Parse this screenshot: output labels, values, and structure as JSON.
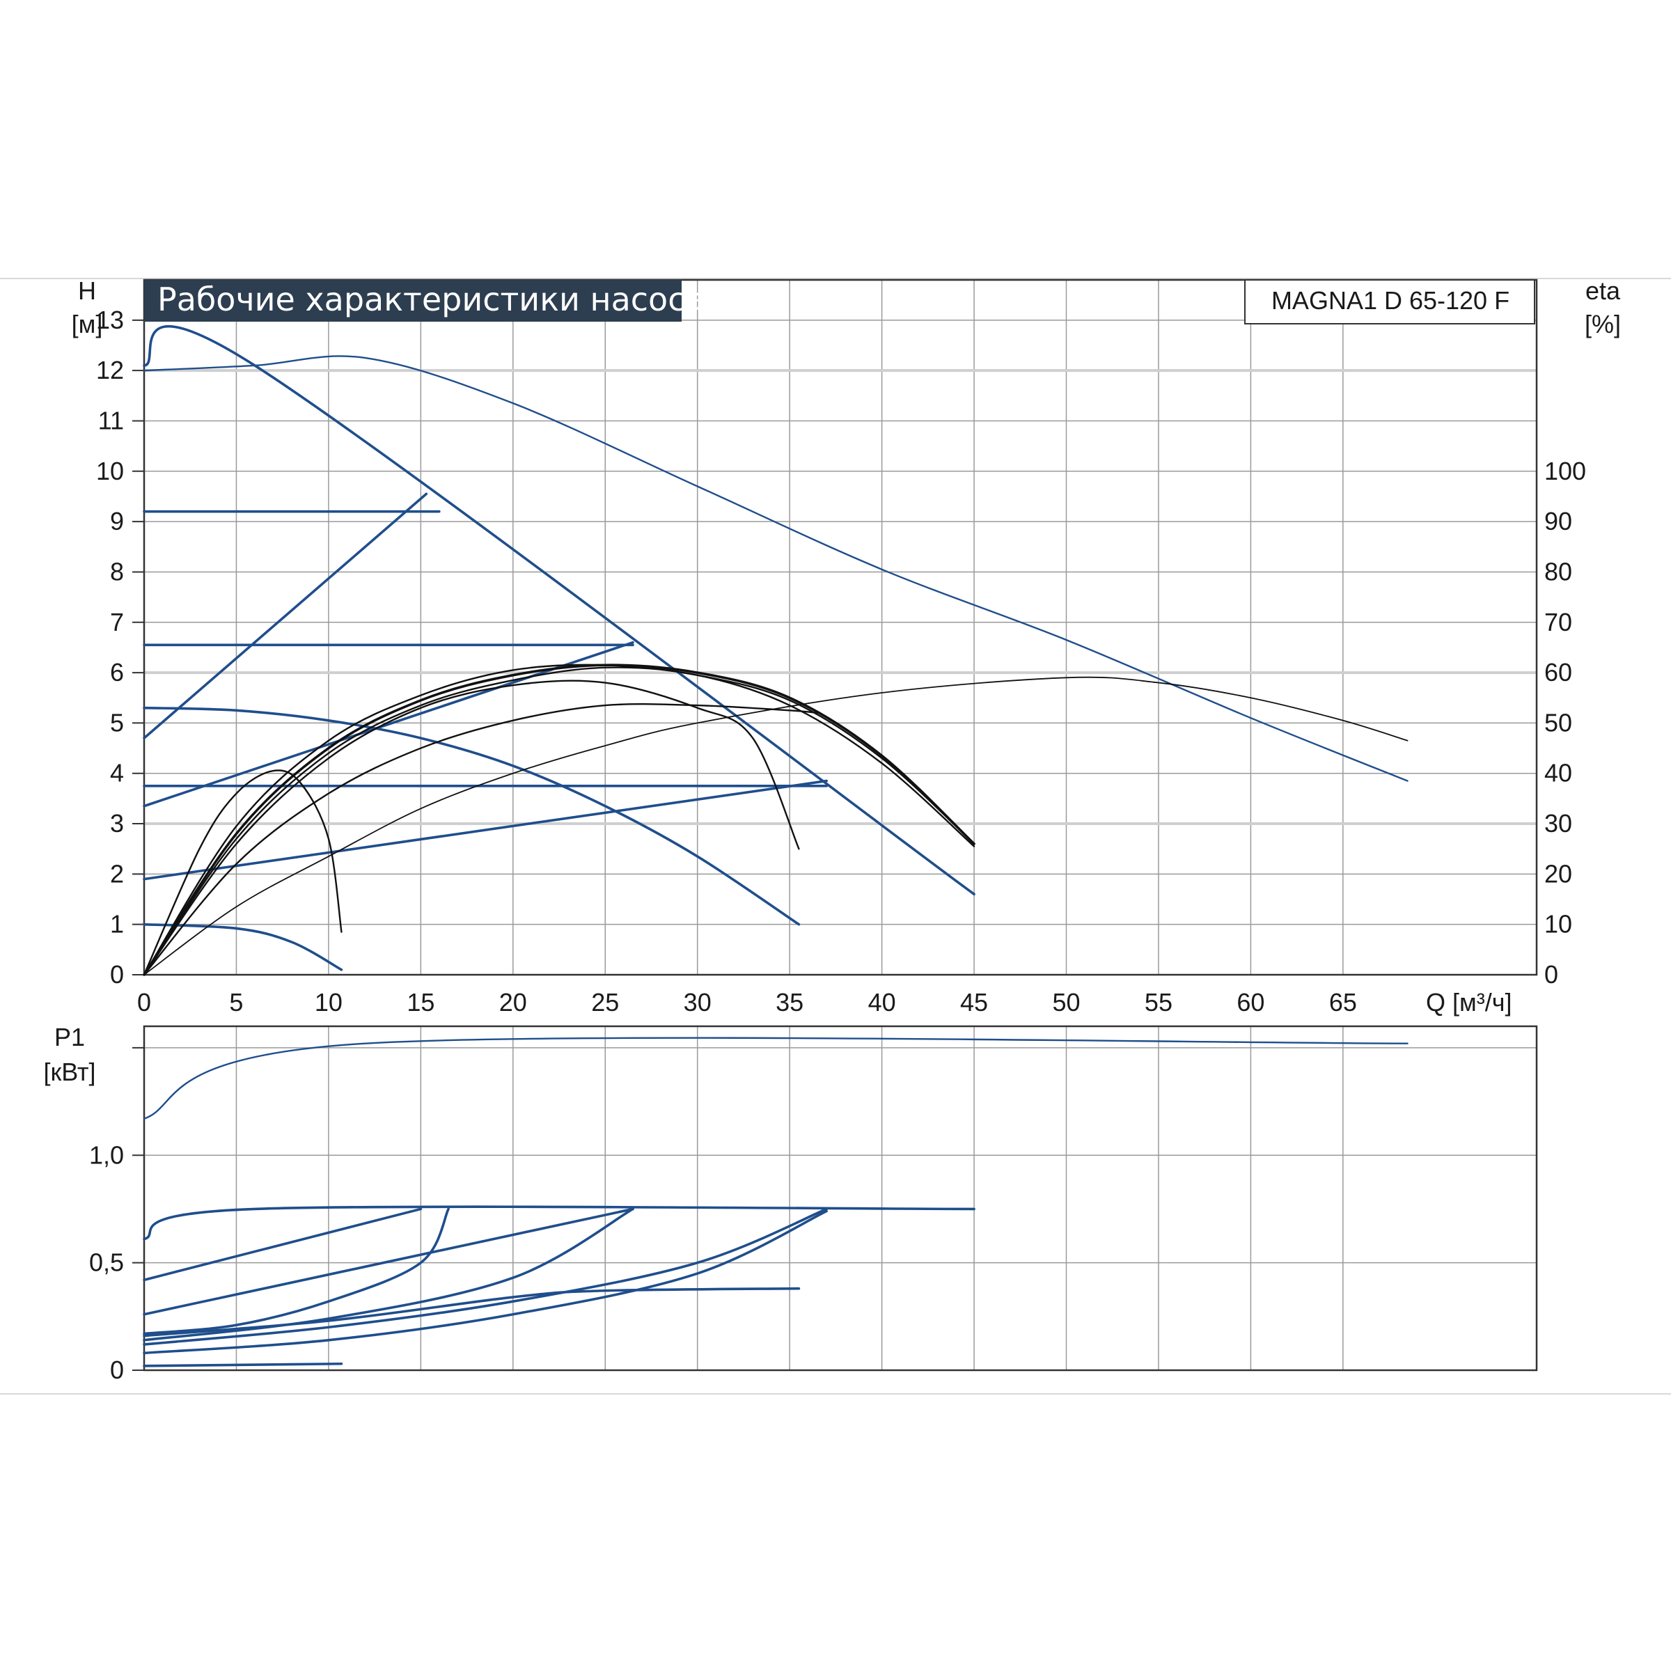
{
  "title": "Рабочие характеристики насоса",
  "model": "MAGNA1 D 65-120 F",
  "colors": {
    "blue": "#1f4e8c",
    "black": "#111111",
    "grid": "#9a9a9a",
    "grid_major": "#cfcfcf",
    "title_bg": "#2d3e50"
  },
  "axes": {
    "h_label_1": "H",
    "h_label_2": "[м]",
    "eta_label_1": "eta",
    "eta_label_2": "[%]",
    "q_label": "Q [м³/ч]",
    "p_label_1": "P1",
    "p_label_2": "[кВт]"
  },
  "chart_data": [
    {
      "type": "line",
      "name": "head",
      "x_ticks": [
        "0",
        "5",
        "10",
        "15",
        "20",
        "25",
        "30",
        "35",
        "40",
        "45",
        "50",
        "55",
        "60",
        "65"
      ],
      "y_left_ticks": [
        "0",
        "1",
        "2",
        "3",
        "4",
        "5",
        "6",
        "7",
        "8",
        "9",
        "10",
        "11",
        "12",
        "13"
      ],
      "y_right_ticks": [
        "0",
        "10",
        "20",
        "30",
        "40",
        "50",
        "60",
        "70",
        "80",
        "90",
        "100"
      ],
      "xlim": [
        0,
        75.5
      ],
      "ylim": [
        0,
        13.8
      ],
      "series": [
        {
          "color": "blue",
          "width": 2,
          "points": [
            [
              0,
              12.0
            ],
            [
              6,
              12.1
            ],
            [
              12,
              12.25
            ],
            [
              20,
              11.35
            ],
            [
              30,
              9.7
            ],
            [
              40,
              8.05
            ],
            [
              50,
              6.65
            ],
            [
              60,
              5.1
            ],
            [
              68.5,
              3.85
            ]
          ]
        },
        {
          "color": "blue",
          "width": 3,
          "points": [
            [
              0,
              12.1
            ],
            [
              6,
              12.1
            ],
            [
              45,
              1.6
            ]
          ]
        },
        {
          "color": "blue",
          "width": 3,
          "points": [
            [
              0,
              9.2
            ],
            [
              16,
              9.2
            ]
          ]
        },
        {
          "color": "blue",
          "width": 3,
          "points": [
            [
              0,
              6.55
            ],
            [
              26.5,
              6.55
            ]
          ]
        },
        {
          "color": "blue",
          "width": 3,
          "points": [
            [
              0,
              3.75
            ],
            [
              37,
              3.75
            ]
          ]
        },
        {
          "color": "blue",
          "width": 3,
          "points": [
            [
              0,
              4.7
            ],
            [
              15.3,
              9.55
            ]
          ]
        },
        {
          "color": "blue",
          "width": 3,
          "points": [
            [
              0,
              3.35
            ],
            [
              26.5,
              6.6
            ]
          ]
        },
        {
          "color": "blue",
          "width": 3,
          "points": [
            [
              0,
              1.9
            ],
            [
              37,
              3.85
            ]
          ]
        },
        {
          "color": "blue",
          "width": 3,
          "points": [
            [
              0,
              5.3
            ],
            [
              5,
              5.25
            ],
            [
              10,
              5.05
            ],
            [
              15,
              4.7
            ],
            [
              20,
              4.15
            ],
            [
              25,
              3.35
            ],
            [
              30,
              2.35
            ],
            [
              35.5,
              1.0
            ]
          ]
        },
        {
          "color": "blue",
          "width": 3,
          "points": [
            [
              0,
              1.0
            ],
            [
              5,
              0.92
            ],
            [
              8,
              0.65
            ],
            [
              10.7,
              0.1
            ]
          ]
        },
        {
          "color": "black",
          "width": 2,
          "points": [
            [
              0,
              0
            ],
            [
              5,
              2.2
            ],
            [
              10,
              3.6
            ],
            [
              15,
              4.5
            ],
            [
              20,
              5.05
            ],
            [
              25,
              5.35
            ],
            [
              30,
              5.35
            ],
            [
              35,
              5.25
            ],
            [
              36.5,
              5.2
            ]
          ]
        },
        {
          "color": "black",
          "width": 2,
          "points": [
            [
              0,
              0
            ],
            [
              5,
              2.6
            ],
            [
              10,
              4.3
            ],
            [
              15,
              5.3
            ],
            [
              20,
              5.75
            ],
            [
              25,
              5.8
            ],
            [
              30,
              5.3
            ],
            [
              33,
              4.7
            ],
            [
              35.5,
              2.5
            ]
          ]
        },
        {
          "color": "black",
          "width": 2,
          "points": [
            [
              0,
              0
            ],
            [
              3,
              2.5
            ],
            [
              5,
              3.6
            ],
            [
              7,
              4.05
            ],
            [
              8.5,
              3.8
            ],
            [
              10,
              2.7
            ],
            [
              10.7,
              0.85
            ]
          ]
        },
        {
          "color": "black",
          "width": 2,
          "points": [
            [
              0,
              0
            ],
            [
              5,
              2.95
            ],
            [
              10,
              4.65
            ],
            [
              15,
              5.55
            ],
            [
              20,
              6.05
            ],
            [
              25,
              6.15
            ],
            [
              30,
              5.95
            ],
            [
              35,
              5.45
            ],
            [
              40,
              4.3
            ],
            [
              45,
              2.6
            ]
          ]
        },
        {
          "color": "black",
          "width": 3,
          "points": [
            [
              0,
              0
            ],
            [
              5,
              2.8
            ],
            [
              10,
              4.5
            ],
            [
              15,
              5.45
            ],
            [
              20,
              5.95
            ],
            [
              25,
              6.15
            ],
            [
              30,
              6.0
            ],
            [
              35,
              5.5
            ],
            [
              40,
              4.35
            ],
            [
              45,
              2.6
            ]
          ]
        },
        {
          "color": "black",
          "width": 2,
          "points": [
            [
              0,
              0
            ],
            [
              5,
              2.7
            ],
            [
              10,
              4.4
            ],
            [
              15,
              5.35
            ],
            [
              20,
              5.85
            ],
            [
              25,
              6.1
            ],
            [
              30,
              5.95
            ],
            [
              35,
              5.35
            ],
            [
              40,
              4.2
            ],
            [
              45,
              2.55
            ]
          ]
        },
        {
          "color": "black",
          "width": 1.5,
          "points": [
            [
              0,
              0
            ],
            [
              5,
              1.35
            ],
            [
              10,
              2.35
            ],
            [
              15,
              3.3
            ],
            [
              20,
              4.0
            ],
            [
              25,
              4.55
            ],
            [
              30,
              5.0
            ],
            [
              40,
              5.6
            ],
            [
              50,
              5.9
            ],
            [
              55,
              5.8
            ],
            [
              60,
              5.5
            ],
            [
              65,
              5.05
            ],
            [
              68.5,
              4.65
            ]
          ]
        }
      ]
    },
    {
      "type": "line",
      "name": "power",
      "y_ticks": [
        "0",
        "0,5",
        "1,0"
      ],
      "xlim": [
        0,
        75.5
      ],
      "ylim": [
        0,
        1.6
      ],
      "series": [
        {
          "color": "blue",
          "width": 2,
          "points": [
            [
              0,
              1.17
            ],
            [
              12,
              1.52
            ],
            [
              68.5,
              1.52
            ]
          ]
        },
        {
          "color": "blue",
          "width": 3,
          "points": [
            [
              0,
              0.61
            ],
            [
              6,
              0.75
            ],
            [
              45,
              0.75
            ]
          ]
        },
        {
          "color": "blue",
          "width": 3,
          "points": [
            [
              0,
              0.42
            ],
            [
              15,
              0.75
            ]
          ]
        },
        {
          "color": "blue",
          "width": 3,
          "points": [
            [
              0,
              0.26
            ],
            [
              26.5,
              0.75
            ]
          ]
        },
        {
          "color": "blue",
          "width": 3,
          "points": [
            [
              0,
              0.17
            ],
            [
              5,
              0.21
            ],
            [
              10,
              0.32
            ],
            [
              15,
              0.5
            ],
            [
              16.5,
              0.75
            ]
          ]
        },
        {
          "color": "blue",
          "width": 3,
          "points": [
            [
              0,
              0.14
            ],
            [
              10,
              0.24
            ],
            [
              20,
              0.43
            ],
            [
              26.5,
              0.75
            ]
          ]
        },
        {
          "color": "blue",
          "width": 3,
          "points": [
            [
              0,
              0.12
            ],
            [
              10,
              0.2
            ],
            [
              20,
              0.32
            ],
            [
              30,
              0.5
            ],
            [
              37,
              0.75
            ]
          ]
        },
        {
          "color": "blue",
          "width": 3,
          "points": [
            [
              0,
              0.08
            ],
            [
              10,
              0.14
            ],
            [
              20,
              0.26
            ],
            [
              30,
              0.45
            ],
            [
              37,
              0.74
            ]
          ]
        },
        {
          "color": "blue",
          "width": 3,
          "points": [
            [
              0,
              0.16
            ],
            [
              10,
              0.23
            ],
            [
              20,
              0.34
            ],
            [
              25,
              0.37
            ],
            [
              35.5,
              0.38
            ]
          ]
        },
        {
          "color": "blue",
          "width": 3,
          "points": [
            [
              0,
              0.02
            ],
            [
              10.7,
              0.03
            ]
          ]
        }
      ]
    }
  ]
}
